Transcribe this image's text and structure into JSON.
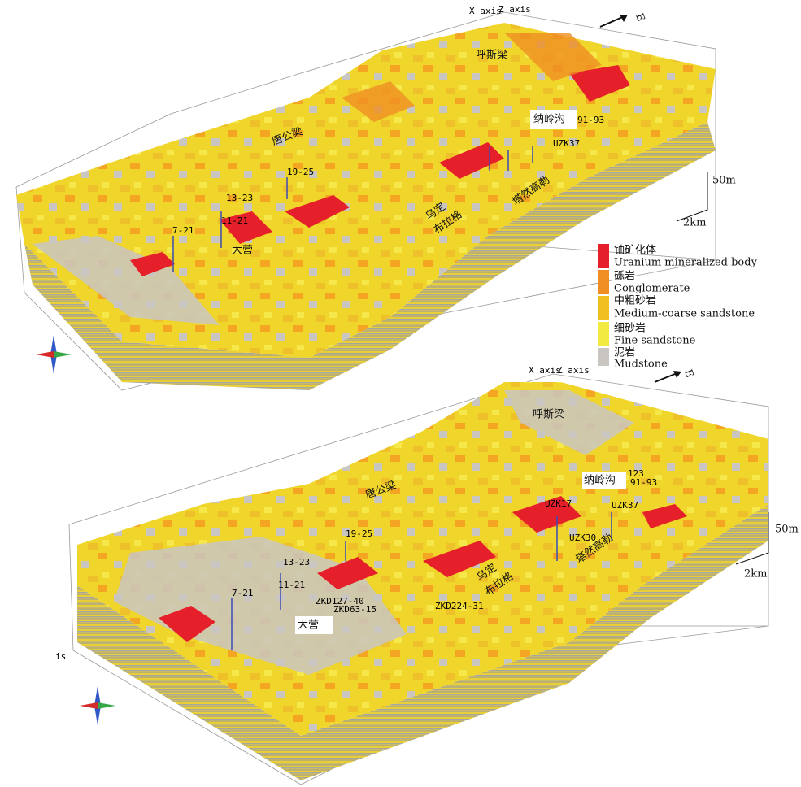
{
  "top_model": {
    "x_axis": "X axis",
    "z_axis": "Z axis",
    "direction": "E",
    "places": [
      "呼斯梁",
      "唐公梁",
      "纳岭沟",
      "大营",
      "乌定",
      "布拉格",
      "塔然高勒"
    ],
    "wells": [
      "91-93",
      "UZK37",
      "19-25",
      "13-23",
      "11-21",
      "7-21"
    ],
    "scale_vertical": "50m",
    "scale_horizontal": "2km"
  },
  "legend": [
    {
      "cn": "铀矿化体",
      "en": "Uranium mineralized body"
    },
    {
      "cn": "砾岩",
      "en": "Conglomerate"
    },
    {
      "cn": "中粗砂岩",
      "en": "Medium-coarse sandstone"
    },
    {
      "cn": "细砂岩",
      "en": "Fine sandstone"
    },
    {
      "cn": "泥岩",
      "en": "Mudstone"
    }
  ],
  "bottom_model": {
    "x_axis": "X axis",
    "z_axis": "Z axis",
    "direction": "E",
    "axis_fragment": "is",
    "places": [
      "呼斯梁",
      "唐公梁",
      "纳岭沟",
      "大营",
      "乌定",
      "布拉格",
      "塔然高勒"
    ],
    "wells": [
      "123",
      "91-93",
      "UZK17",
      "UZK37",
      "UZK30",
      "19-25",
      "13-23",
      "11-21",
      "7-21",
      "ZKD127-40",
      "ZKD63-15",
      "ZKD224-31"
    ],
    "scale_vertical": "50m",
    "scale_horizontal": "2km"
  }
}
